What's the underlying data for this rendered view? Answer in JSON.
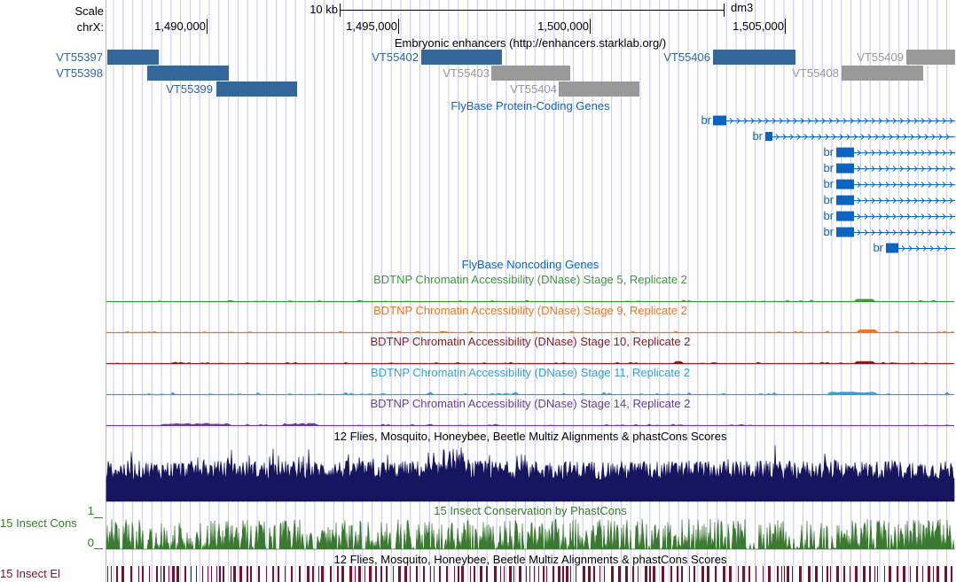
{
  "ruler": {
    "scale_label": "Scale",
    "chrom_label": "chrX:",
    "scale_text": "10 kb",
    "assembly": "dm3",
    "ticks": [
      "1,490,000",
      "1,495,000",
      "1,500,000",
      "1,505,000"
    ]
  },
  "tracks": {
    "enhancers": {
      "title": "Embryonic enhancers (http://enhancers.starklab.org/)",
      "items": [
        {
          "name": "VT55397",
          "color": "#336699"
        },
        {
          "name": "VT55398",
          "color": "#336699"
        },
        {
          "name": "VT55399",
          "color": "#336699"
        },
        {
          "name": "VT55402",
          "color": "#336699"
        },
        {
          "name": "VT55403",
          "color": "#999999"
        },
        {
          "name": "VT55404",
          "color": "#999999"
        },
        {
          "name": "VT55406",
          "color": "#336699"
        },
        {
          "name": "VT55408",
          "color": "#999999"
        },
        {
          "name": "VT55409",
          "color": "#999999"
        }
      ]
    },
    "coding_genes": {
      "title": "FlyBase Protein-Coding Genes",
      "color": "#0c64c0",
      "transcripts": [
        "br",
        "br",
        "br",
        "br",
        "br",
        "br",
        "br",
        "br",
        "br"
      ]
    },
    "noncoding": {
      "title": "FlyBase Noncoding Genes",
      "color": "#0c64c0"
    },
    "dnase": [
      {
        "title": "BDTNP Chromatin Accessibility (DNase) Stage 5, Replicate 2",
        "color": "#3a9a3a"
      },
      {
        "title": "BDTNP Chromatin Accessibility (DNase) Stage 9, Replicate 2",
        "color": "#e87722"
      },
      {
        "title": "BDTNP Chromatin Accessibility (DNase) Stage 10, Replicate 2",
        "color": "#8b1a1a"
      },
      {
        "title": "BDTNP Chromatin Accessibility (DNase) Stage 11, Replicate 2",
        "color": "#3a9ecf"
      },
      {
        "title": "BDTNP Chromatin Accessibility (DNase) Stage 14, Replicate 2",
        "color": "#6a3d9a"
      }
    ],
    "multiz": {
      "title": "12 Flies, Mosquito, Honeybee, Beetle Multiz Alignments & phastCons Scores",
      "color": "#151560"
    },
    "phastcons": {
      "title": "15 Insect Conservation by PhastCons",
      "side_label": "15 Insect Cons",
      "axis_max": "1",
      "axis_min": "0",
      "color": "#3a7a30"
    },
    "elements": {
      "title": "12 Flies, Mosquito, Honeybee, Beetle Multiz Alignments & phastCons Scores",
      "side_label": "15 Insect El",
      "color": "#7a1030"
    }
  },
  "colors": {
    "grid": "#c8c8f0",
    "left_border": "#f0a0a0"
  }
}
